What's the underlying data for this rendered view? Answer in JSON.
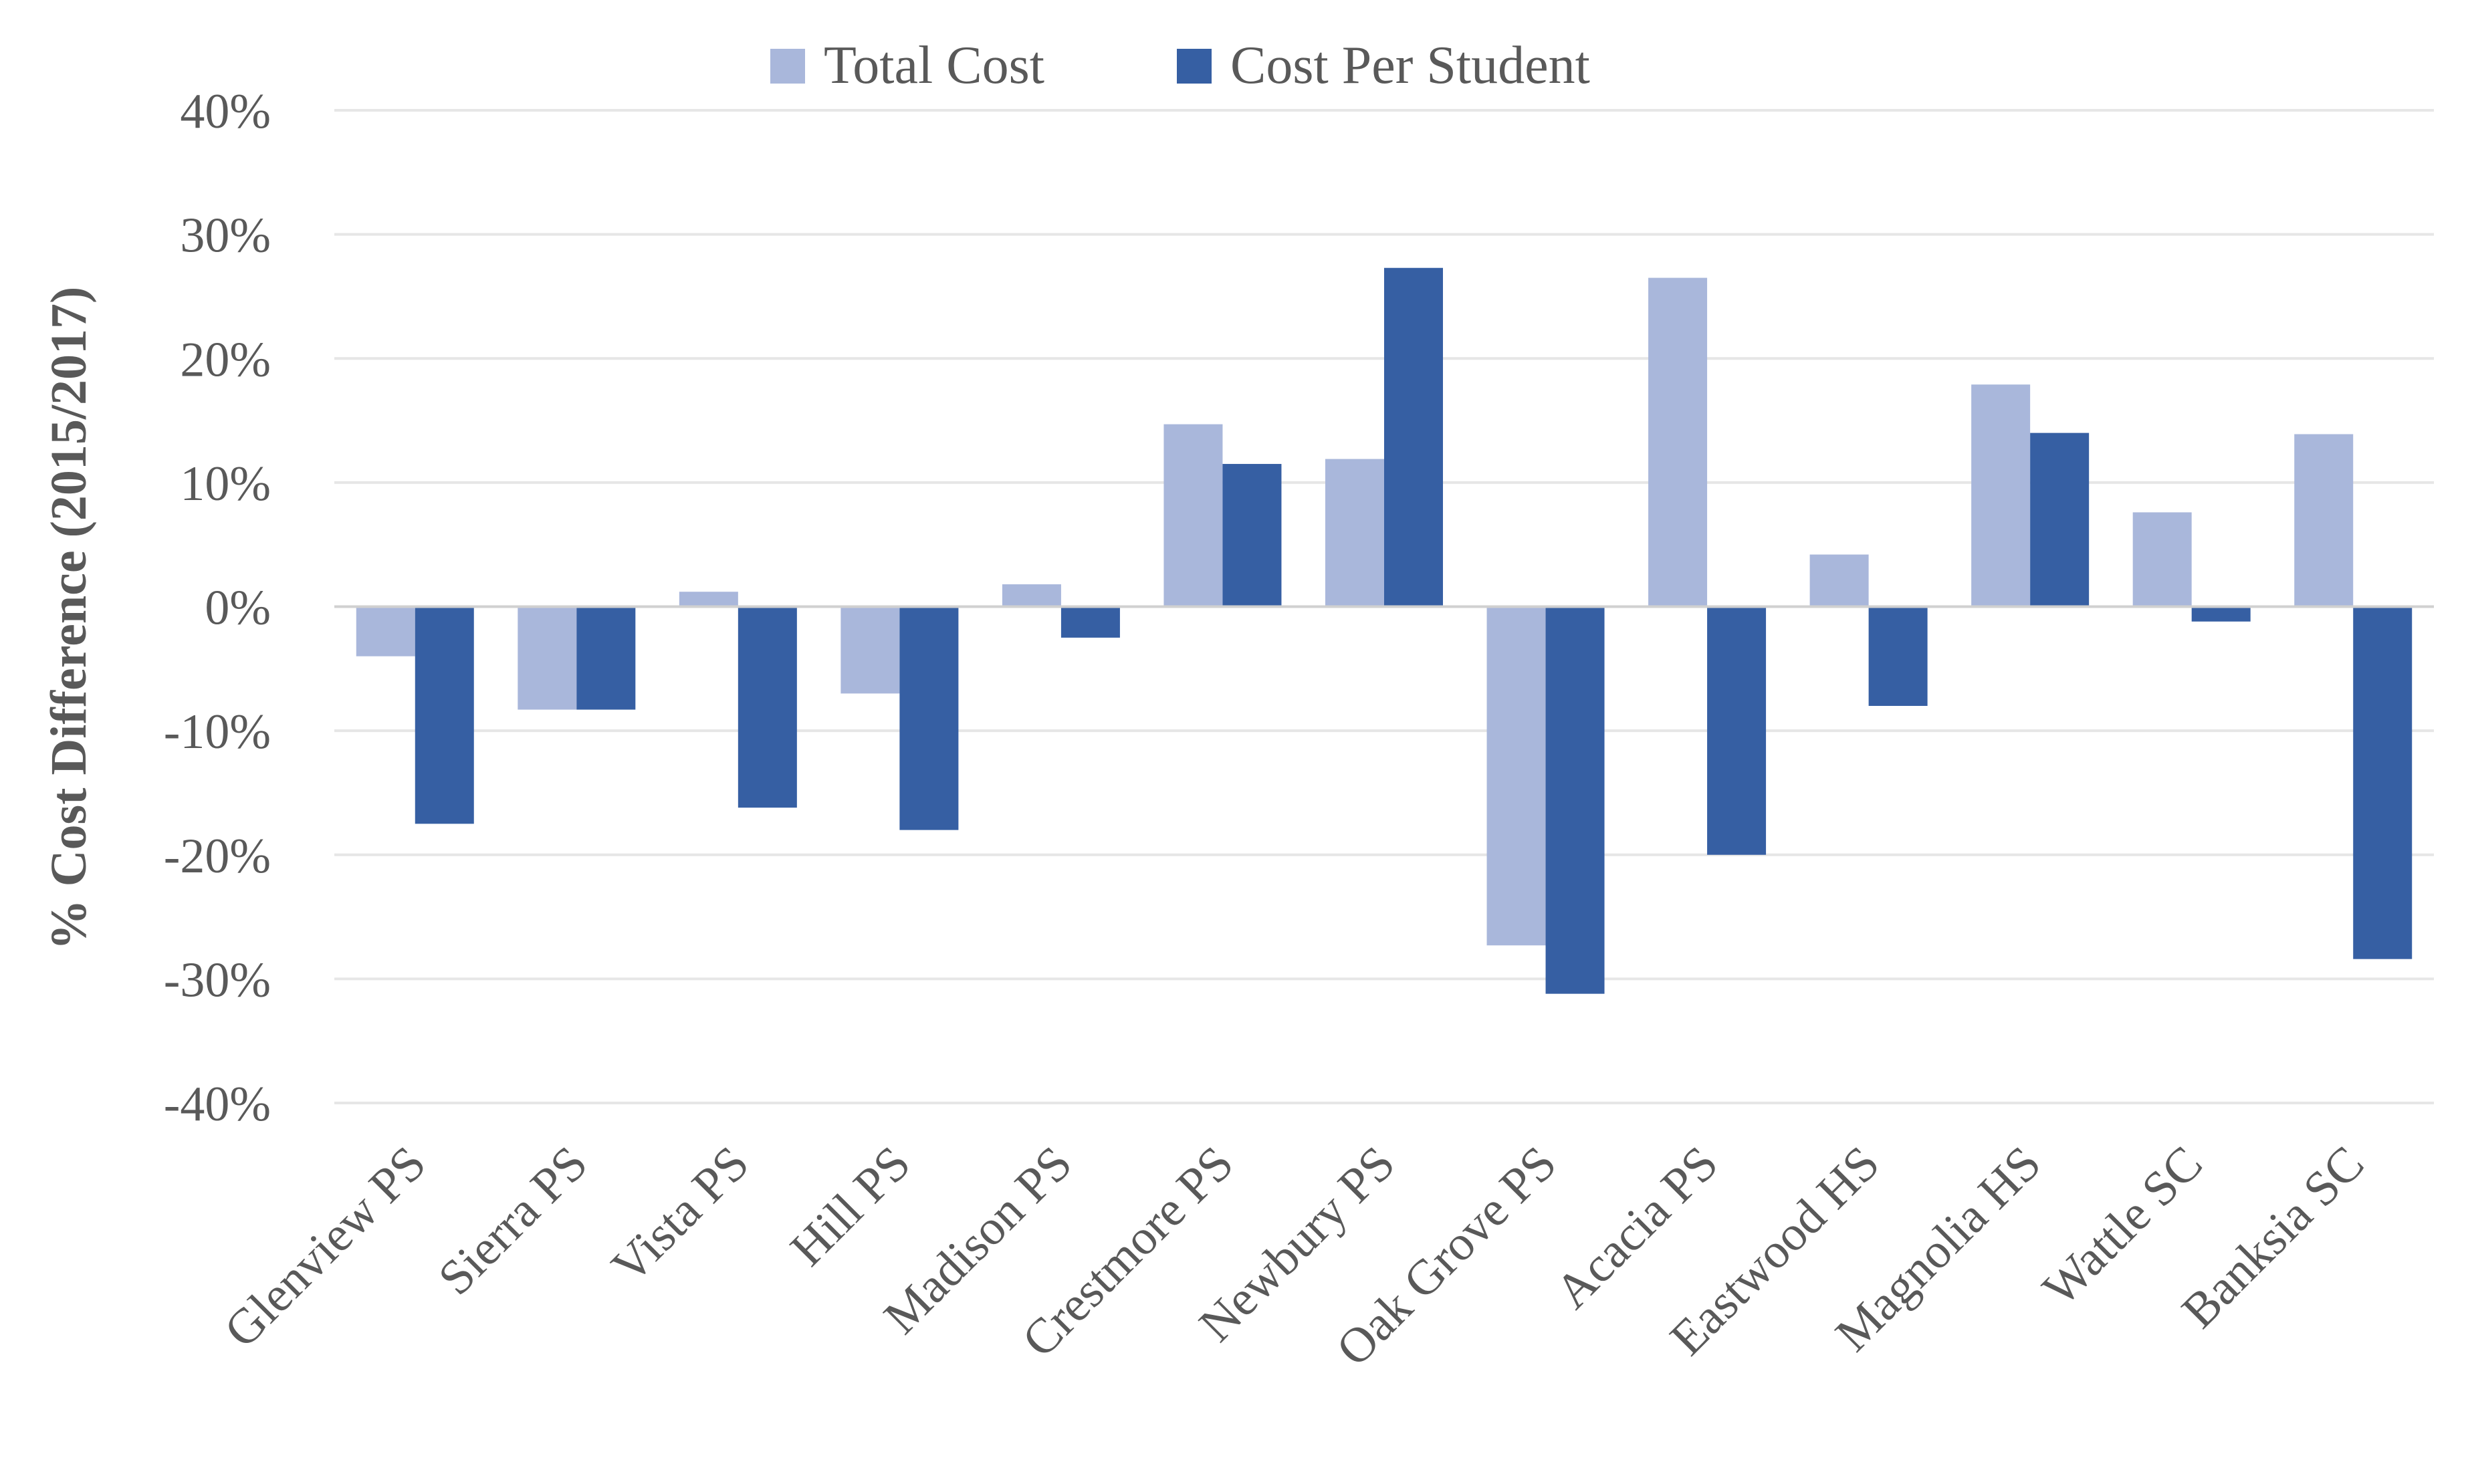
{
  "chart_data": {
    "type": "bar",
    "title": "",
    "xlabel": "",
    "ylabel": "% Cost Difference (2015/2017)",
    "ylim": [
      -40,
      40
    ],
    "yticks": [
      40,
      30,
      20,
      10,
      0,
      -10,
      -20,
      -30,
      -40
    ],
    "ytick_labels": [
      "40%",
      "30%",
      "20%",
      "10%",
      "0%",
      "-10%",
      "-20%",
      "-30%",
      "-40%"
    ],
    "grid": true,
    "legend_position": "top-center",
    "categories": [
      "Glenview PS",
      "Sierra PS",
      "Vista PS",
      "Hill PS",
      "Madison PS",
      "Crestmore PS",
      "Newbury PS",
      "Oak Grove PS",
      "Acacia PS",
      "Eastwood HS",
      "Magnolia HS",
      "Wattle SC",
      "Banksia SC"
    ],
    "series": [
      {
        "name": "Total Cost",
        "color": "#A9B7DB",
        "values": [
          -4,
          -8.3,
          1.2,
          -7,
          1.8,
          14.7,
          11.9,
          -27.3,
          26.5,
          4.2,
          17.9,
          7.6,
          13.9
        ]
      },
      {
        "name": "Cost Per Student",
        "color": "#365FA3",
        "values": [
          -17.5,
          -8.3,
          -16.2,
          -18,
          -2.5,
          11.5,
          27.3,
          -31.2,
          -20,
          -8,
          14,
          -1.2,
          -28.4
        ]
      }
    ]
  }
}
